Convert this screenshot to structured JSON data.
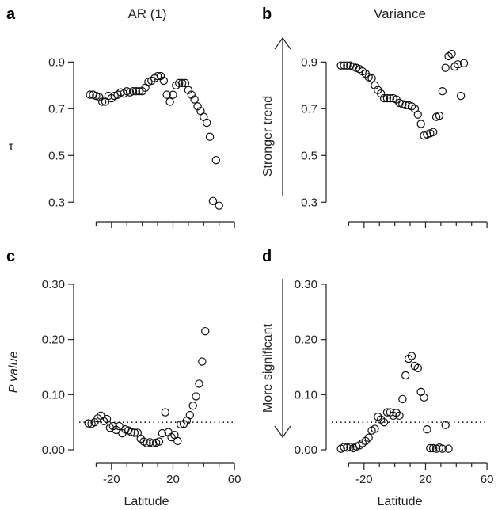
{
  "chart_data": [
    {
      "panel": "a",
      "type": "scatter",
      "title": "AR (1)",
      "ylabel": "τ",
      "xlabel": "",
      "ylim": [
        0.25,
        1.03
      ],
      "yticks": [
        0.3,
        0.5,
        0.7,
        0.9
      ],
      "ytick_labels": [
        "0.3",
        "0.5",
        "0.7",
        "0.9"
      ],
      "xlim": [
        -40,
        62
      ],
      "xticks": [
        -30,
        -20,
        -10,
        0,
        10,
        20,
        30,
        40,
        50,
        60
      ],
      "xtick_labels": [],
      "points": [
        [
          -34,
          0.76
        ],
        [
          -32,
          0.76
        ],
        [
          -30,
          0.755
        ],
        [
          -28,
          0.75
        ],
        [
          -26,
          0.73
        ],
        [
          -24,
          0.73
        ],
        [
          -22,
          0.755
        ],
        [
          -20,
          0.745
        ],
        [
          -18,
          0.755
        ],
        [
          -16,
          0.76
        ],
        [
          -14,
          0.77
        ],
        [
          -12,
          0.765
        ],
        [
          -10,
          0.775
        ],
        [
          -8,
          0.77
        ],
        [
          -6,
          0.775
        ],
        [
          -4,
          0.775
        ],
        [
          -2,
          0.775
        ],
        [
          0,
          0.775
        ],
        [
          2,
          0.79
        ],
        [
          4,
          0.815
        ],
        [
          6,
          0.82
        ],
        [
          8,
          0.83
        ],
        [
          10,
          0.84
        ],
        [
          12,
          0.84
        ],
        [
          14,
          0.82
        ],
        [
          16,
          0.76
        ],
        [
          18,
          0.73
        ],
        [
          20,
          0.76
        ],
        [
          22,
          0.8
        ],
        [
          24,
          0.81
        ],
        [
          26,
          0.81
        ],
        [
          28,
          0.81
        ],
        [
          30,
          0.78
        ],
        [
          32,
          0.76
        ],
        [
          34,
          0.74
        ],
        [
          36,
          0.71
        ],
        [
          38,
          0.69
        ],
        [
          40,
          0.665
        ],
        [
          42,
          0.64
        ],
        [
          44,
          0.58
        ],
        [
          46,
          0.305
        ],
        [
          48,
          0.48
        ],
        [
          50,
          0.285
        ]
      ]
    },
    {
      "panel": "b",
      "type": "scatter",
      "title": "Variance",
      "ylabel": "",
      "xlabel": "",
      "annotation": "Stronger trend",
      "annotation_arrow": "up",
      "ylim": [
        0.25,
        1.03
      ],
      "yticks": [
        0.3,
        0.5,
        0.7,
        0.9
      ],
      "ytick_labels": [
        "0.3",
        "0.5",
        "0.7",
        "0.9"
      ],
      "xlim": [
        -40,
        62
      ],
      "xticks": [
        -30,
        -20,
        -10,
        0,
        10,
        20,
        30,
        40,
        50,
        60
      ],
      "xtick_labels": [],
      "points": [
        [
          -35,
          0.885
        ],
        [
          -33,
          0.885
        ],
        [
          -31,
          0.885
        ],
        [
          -29,
          0.885
        ],
        [
          -27,
          0.88
        ],
        [
          -25,
          0.875
        ],
        [
          -23,
          0.87
        ],
        [
          -21,
          0.86
        ],
        [
          -19,
          0.85
        ],
        [
          -17,
          0.835
        ],
        [
          -15,
          0.83
        ],
        [
          -13,
          0.8
        ],
        [
          -11,
          0.78
        ],
        [
          -9,
          0.765
        ],
        [
          -7,
          0.745
        ],
        [
          -5,
          0.745
        ],
        [
          -3,
          0.745
        ],
        [
          -1,
          0.745
        ],
        [
          1,
          0.74
        ],
        [
          3,
          0.725
        ],
        [
          5,
          0.72
        ],
        [
          7,
          0.715
        ],
        [
          9,
          0.715
        ],
        [
          11,
          0.71
        ],
        [
          13,
          0.7
        ],
        [
          15,
          0.675
        ],
        [
          17,
          0.635
        ],
        [
          19,
          0.585
        ],
        [
          21,
          0.59
        ],
        [
          23,
          0.595
        ],
        [
          25,
          0.6
        ],
        [
          27,
          0.665
        ],
        [
          29,
          0.67
        ],
        [
          31,
          0.775
        ],
        [
          33,
          0.875
        ],
        [
          35,
          0.925
        ],
        [
          37,
          0.935
        ],
        [
          39,
          0.88
        ],
        [
          41,
          0.89
        ],
        [
          43,
          0.755
        ],
        [
          45,
          0.895
        ]
      ]
    },
    {
      "panel": "c",
      "type": "scatter",
      "title": "",
      "ylabel": "P value",
      "xlabel": "Latitude",
      "ylim": [
        -0.01,
        0.32
      ],
      "yticks": [
        0.0,
        0.1,
        0.2,
        0.3
      ],
      "ytick_labels": [
        "0.00",
        "0.10",
        "0.20",
        "0.30"
      ],
      "xlim": [
        -40,
        62
      ],
      "xticks": [
        -30,
        -20,
        -10,
        0,
        10,
        20,
        30,
        40,
        50,
        60
      ],
      "xtick_labels": [
        "-20",
        "20",
        "60"
      ],
      "xtick_label_values": [
        -20,
        20,
        60
      ],
      "reference_line": 0.05,
      "points": [
        [
          -35,
          0.048
        ],
        [
          -33,
          0.047
        ],
        [
          -31,
          0.05
        ],
        [
          -29,
          0.057
        ],
        [
          -27,
          0.062
        ],
        [
          -25,
          0.052
        ],
        [
          -23,
          0.056
        ],
        [
          -21,
          0.04
        ],
        [
          -19,
          0.043
        ],
        [
          -17,
          0.036
        ],
        [
          -15,
          0.043
        ],
        [
          -13,
          0.03
        ],
        [
          -11,
          0.037
        ],
        [
          -9,
          0.035
        ],
        [
          -7,
          0.032
        ],
        [
          -5,
          0.031
        ],
        [
          -3,
          0.031
        ],
        [
          -1,
          0.02
        ],
        [
          1,
          0.015
        ],
        [
          3,
          0.012
        ],
        [
          5,
          0.014
        ],
        [
          7,
          0.012
        ],
        [
          9,
          0.013
        ],
        [
          11,
          0.015
        ],
        [
          13,
          0.03
        ],
        [
          15,
          0.068
        ],
        [
          17,
          0.032
        ],
        [
          19,
          0.023
        ],
        [
          21,
          0.027
        ],
        [
          23,
          0.016
        ],
        [
          25,
          0.046
        ],
        [
          27,
          0.047
        ],
        [
          29,
          0.053
        ],
        [
          31,
          0.063
        ],
        [
          33,
          0.08
        ],
        [
          35,
          0.097
        ],
        [
          37,
          0.12
        ],
        [
          39,
          0.16
        ],
        [
          41,
          0.215
        ]
      ]
    },
    {
      "panel": "d",
      "type": "scatter",
      "title": "",
      "ylabel": "",
      "xlabel": "Latitude",
      "annotation": "More significant",
      "annotation_arrow": "down",
      "ylim": [
        -0.01,
        0.32
      ],
      "yticks": [
        0.0,
        0.1,
        0.2,
        0.3
      ],
      "ytick_labels": [
        "0.00",
        "0.10",
        "0.20",
        "0.30"
      ],
      "xlim": [
        -40,
        62
      ],
      "xticks": [
        -30,
        -20,
        -10,
        0,
        10,
        20,
        30,
        40,
        50,
        60
      ],
      "xtick_labels": [
        "-20",
        "20",
        "60"
      ],
      "xtick_label_values": [
        -20,
        20,
        60
      ],
      "reference_line": 0.05,
      "points": [
        [
          -35,
          0.002
        ],
        [
          -33,
          0.005
        ],
        [
          -31,
          0.004
        ],
        [
          -29,
          0.005
        ],
        [
          -27,
          0.003
        ],
        [
          -25,
          0.006
        ],
        [
          -23,
          0.008
        ],
        [
          -21,
          0.012
        ],
        [
          -19,
          0.016
        ],
        [
          -17,
          0.022
        ],
        [
          -15,
          0.035
        ],
        [
          -13,
          0.038
        ],
        [
          -11,
          0.06
        ],
        [
          -9,
          0.055
        ],
        [
          -7,
          0.05
        ],
        [
          -5,
          0.068
        ],
        [
          -3,
          0.068
        ],
        [
          -1,
          0.062
        ],
        [
          1,
          0.067
        ],
        [
          3,
          0.062
        ],
        [
          5,
          0.092
        ],
        [
          7,
          0.135
        ],
        [
          9,
          0.165
        ],
        [
          11,
          0.17
        ],
        [
          13,
          0.152
        ],
        [
          15,
          0.148
        ],
        [
          17,
          0.105
        ],
        [
          19,
          0.095
        ],
        [
          21,
          0.037
        ],
        [
          23,
          0.003
        ],
        [
          25,
          0.003
        ],
        [
          27,
          0.002
        ],
        [
          29,
          0.004
        ],
        [
          31,
          0.002
        ],
        [
          33,
          0.045
        ],
        [
          35,
          0.002
        ]
      ]
    }
  ]
}
